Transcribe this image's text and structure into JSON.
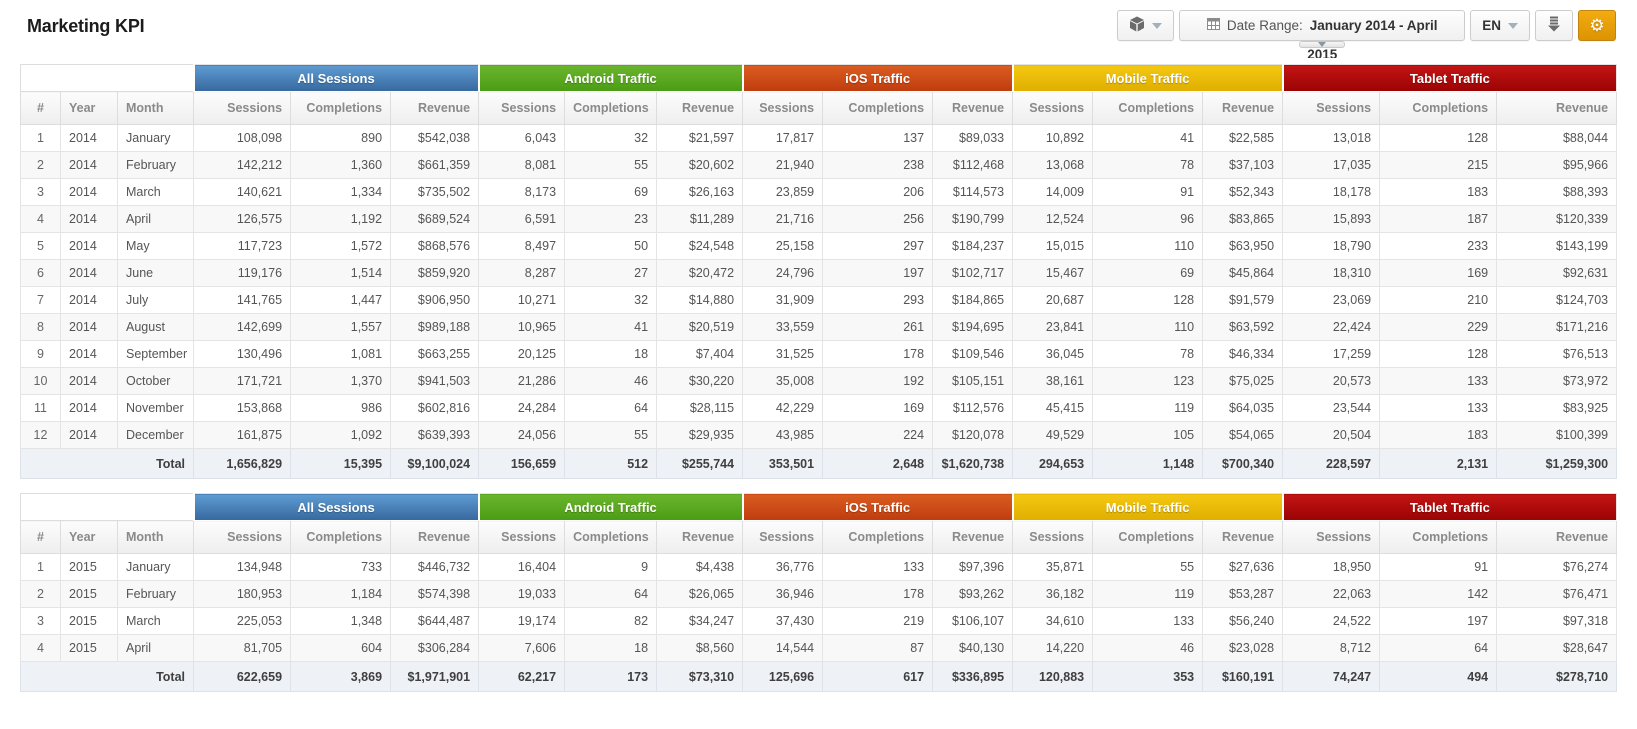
{
  "header": {
    "title": "Marketing KPI"
  },
  "toolbar": {
    "accent_color": "#e89b0c",
    "widget_button": {
      "icon": "cube-icon"
    },
    "date_range": {
      "prefix": "Date Range:",
      "value": "January 2014 - April",
      "overflow": "2015"
    },
    "language": {
      "value": "EN"
    }
  },
  "table_template": {
    "row_columns": {
      "index": "#",
      "year": "Year",
      "month": "Month"
    },
    "metric_columns": [
      "Sessions",
      "Completions",
      "Revenue"
    ],
    "groups": [
      {
        "label": "All Sessions",
        "color_top": "#5e9cd3",
        "color_bottom": "#36689e"
      },
      {
        "label": "Android Traffic",
        "color_top": "#6ab52c",
        "color_bottom": "#4a9c14"
      },
      {
        "label": "iOS Traffic",
        "color_top": "#da5c20",
        "color_bottom": "#bf3c0e"
      },
      {
        "label": "Mobile Traffic",
        "color_top": "#f4c811",
        "color_bottom": "#dfae00"
      },
      {
        "label": "Tablet Traffic",
        "color_top": "#c31414",
        "color_bottom": "#9a0303"
      }
    ]
  },
  "tables": [
    {
      "name": "2014",
      "rows": [
        {
          "index": "1",
          "year": "2014",
          "month": "January",
          "values": [
            "108,098",
            "890",
            "$542,038",
            "6,043",
            "32",
            "$21,597",
            "17,817",
            "137",
            "$89,033",
            "10,892",
            "41",
            "$22,585",
            "13,018",
            "128",
            "$88,044"
          ]
        },
        {
          "index": "2",
          "year": "2014",
          "month": "February",
          "values": [
            "142,212",
            "1,360",
            "$661,359",
            "8,081",
            "55",
            "$20,602",
            "21,940",
            "238",
            "$112,468",
            "13,068",
            "78",
            "$37,103",
            "17,035",
            "215",
            "$95,966"
          ]
        },
        {
          "index": "3",
          "year": "2014",
          "month": "March",
          "values": [
            "140,621",
            "1,334",
            "$735,502",
            "8,173",
            "69",
            "$26,163",
            "23,859",
            "206",
            "$114,573",
            "14,009",
            "91",
            "$52,343",
            "18,178",
            "183",
            "$88,393"
          ]
        },
        {
          "index": "4",
          "year": "2014",
          "month": "April",
          "values": [
            "126,575",
            "1,192",
            "$689,524",
            "6,591",
            "23",
            "$11,289",
            "21,716",
            "256",
            "$190,799",
            "12,524",
            "96",
            "$83,865",
            "15,893",
            "187",
            "$120,339"
          ]
        },
        {
          "index": "5",
          "year": "2014",
          "month": "May",
          "values": [
            "117,723",
            "1,572",
            "$868,576",
            "8,497",
            "50",
            "$24,548",
            "25,158",
            "297",
            "$184,237",
            "15,015",
            "110",
            "$63,950",
            "18,790",
            "233",
            "$143,199"
          ]
        },
        {
          "index": "6",
          "year": "2014",
          "month": "June",
          "values": [
            "119,176",
            "1,514",
            "$859,920",
            "8,287",
            "27",
            "$20,472",
            "24,796",
            "197",
            "$102,717",
            "15,467",
            "69",
            "$45,864",
            "18,310",
            "169",
            "$92,631"
          ]
        },
        {
          "index": "7",
          "year": "2014",
          "month": "July",
          "values": [
            "141,765",
            "1,447",
            "$906,950",
            "10,271",
            "32",
            "$14,880",
            "31,909",
            "293",
            "$184,865",
            "20,687",
            "128",
            "$91,579",
            "23,069",
            "210",
            "$124,703"
          ]
        },
        {
          "index": "8",
          "year": "2014",
          "month": "August",
          "values": [
            "142,699",
            "1,557",
            "$989,188",
            "10,965",
            "41",
            "$20,519",
            "33,559",
            "261",
            "$194,695",
            "23,841",
            "110",
            "$63,592",
            "22,424",
            "229",
            "$171,216"
          ]
        },
        {
          "index": "9",
          "year": "2014",
          "month": "September",
          "values": [
            "130,496",
            "1,081",
            "$663,255",
            "20,125",
            "18",
            "$7,404",
            "31,525",
            "178",
            "$109,546",
            "36,045",
            "78",
            "$46,334",
            "17,259",
            "128",
            "$76,513"
          ]
        },
        {
          "index": "10",
          "year": "2014",
          "month": "October",
          "values": [
            "171,721",
            "1,370",
            "$941,503",
            "21,286",
            "46",
            "$30,220",
            "35,008",
            "192",
            "$105,151",
            "38,161",
            "123",
            "$75,025",
            "20,573",
            "133",
            "$73,972"
          ]
        },
        {
          "index": "11",
          "year": "2014",
          "month": "November",
          "values": [
            "153,868",
            "986",
            "$602,816",
            "24,284",
            "64",
            "$28,115",
            "42,229",
            "169",
            "$112,576",
            "45,415",
            "119",
            "$64,035",
            "23,544",
            "133",
            "$83,925"
          ]
        },
        {
          "index": "12",
          "year": "2014",
          "month": "December",
          "values": [
            "161,875",
            "1,092",
            "$639,393",
            "24,056",
            "55",
            "$29,935",
            "43,985",
            "224",
            "$120,078",
            "49,529",
            "105",
            "$54,065",
            "20,504",
            "183",
            "$100,399"
          ]
        }
      ],
      "total_label": "Total",
      "totals": [
        "1,656,829",
        "15,395",
        "$9,100,024",
        "156,659",
        "512",
        "$255,744",
        "353,501",
        "2,648",
        "$1,620,738",
        "294,653",
        "1,148",
        "$700,340",
        "228,597",
        "2,131",
        "$1,259,300"
      ]
    },
    {
      "name": "2015",
      "rows": [
        {
          "index": "1",
          "year": "2015",
          "month": "January",
          "values": [
            "134,948",
            "733",
            "$446,732",
            "16,404",
            "9",
            "$4,438",
            "36,776",
            "133",
            "$97,396",
            "35,871",
            "55",
            "$27,636",
            "18,950",
            "91",
            "$76,274"
          ]
        },
        {
          "index": "2",
          "year": "2015",
          "month": "February",
          "values": [
            "180,953",
            "1,184",
            "$574,398",
            "19,033",
            "64",
            "$26,065",
            "36,946",
            "178",
            "$93,262",
            "36,182",
            "119",
            "$53,287",
            "22,063",
            "142",
            "$76,471"
          ]
        },
        {
          "index": "3",
          "year": "2015",
          "month": "March",
          "values": [
            "225,053",
            "1,348",
            "$644,487",
            "19,174",
            "82",
            "$34,247",
            "37,430",
            "219",
            "$106,107",
            "34,610",
            "133",
            "$56,240",
            "24,522",
            "197",
            "$97,318"
          ]
        },
        {
          "index": "4",
          "year": "2015",
          "month": "April",
          "values": [
            "81,705",
            "604",
            "$306,284",
            "7,606",
            "18",
            "$8,560",
            "14,544",
            "87",
            "$40,130",
            "14,220",
            "46",
            "$23,028",
            "8,712",
            "64",
            "$28,647"
          ]
        }
      ],
      "total_label": "Total",
      "totals": [
        "622,659",
        "3,869",
        "$1,971,901",
        "62,217",
        "173",
        "$73,310",
        "125,696",
        "617",
        "$336,895",
        "120,883",
        "353",
        "$160,191",
        "74,247",
        "494",
        "$278,710"
      ]
    }
  ]
}
